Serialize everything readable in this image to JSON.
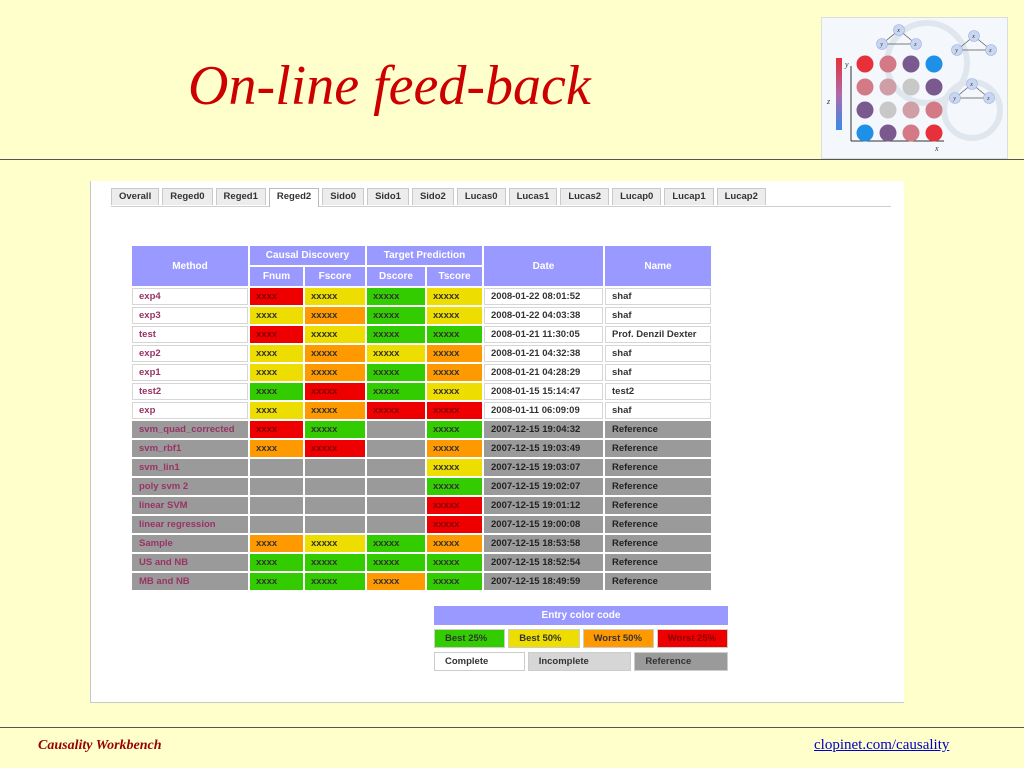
{
  "slide": {
    "title": "On-line feed-back",
    "footer_left": "Causality Workbench",
    "footer_right": "clopinet.com/causality"
  },
  "tabs": [
    "Overall",
    "Reged0",
    "Reged1",
    "Reged2",
    "Sido0",
    "Sido1",
    "Sido2",
    "Lucas0",
    "Lucas1",
    "Lucas2",
    "Lucap0",
    "Lucap1",
    "Lucap2"
  ],
  "active_tab": "Reged2",
  "table": {
    "headers": {
      "method": "Method",
      "causal_discovery": "Causal Discovery",
      "target_prediction": "Target Prediction",
      "date": "Date",
      "name": "Name",
      "fnum": "Fnum",
      "fscore": "Fscore",
      "dscore": "Dscore",
      "tscore": "Tscore"
    },
    "rows": [
      {
        "method": "exp4",
        "ref": false,
        "fnum": {
          "text": "xxxx",
          "color": "red"
        },
        "fscore": {
          "text": "xxxxx",
          "color": "yellow"
        },
        "dscore": {
          "text": "xxxxx",
          "color": "green"
        },
        "tscore": {
          "text": "xxxxx",
          "color": "yellow"
        },
        "date": "2008-01-22 08:01:52",
        "name": "shaf"
      },
      {
        "method": "exp3",
        "ref": false,
        "fnum": {
          "text": "xxxx",
          "color": "yellow"
        },
        "fscore": {
          "text": "xxxxx",
          "color": "orange"
        },
        "dscore": {
          "text": "xxxxx",
          "color": "green"
        },
        "tscore": {
          "text": "xxxxx",
          "color": "yellow"
        },
        "date": "2008-01-22 04:03:38",
        "name": "shaf"
      },
      {
        "method": "test",
        "ref": false,
        "fnum": {
          "text": "xxxx",
          "color": "red"
        },
        "fscore": {
          "text": "xxxxx",
          "color": "yellow"
        },
        "dscore": {
          "text": "xxxxx",
          "color": "green"
        },
        "tscore": {
          "text": "xxxxx",
          "color": "green"
        },
        "date": "2008-01-21 11:30:05",
        "name": "Prof. Denzil Dexter"
      },
      {
        "method": "exp2",
        "ref": false,
        "fnum": {
          "text": "xxxx",
          "color": "yellow"
        },
        "fscore": {
          "text": "xxxxx",
          "color": "orange"
        },
        "dscore": {
          "text": "xxxxx",
          "color": "yellow"
        },
        "tscore": {
          "text": "xxxxx",
          "color": "orange"
        },
        "date": "2008-01-21 04:32:38",
        "name": "shaf"
      },
      {
        "method": "exp1",
        "ref": false,
        "fnum": {
          "text": "xxxx",
          "color": "yellow"
        },
        "fscore": {
          "text": "xxxxx",
          "color": "orange"
        },
        "dscore": {
          "text": "xxxxx",
          "color": "green"
        },
        "tscore": {
          "text": "xxxxx",
          "color": "orange"
        },
        "date": "2008-01-21 04:28:29",
        "name": "shaf"
      },
      {
        "method": "test2",
        "ref": false,
        "fnum": {
          "text": "xxxx",
          "color": "green"
        },
        "fscore": {
          "text": "xxxxx",
          "color": "red"
        },
        "dscore": {
          "text": "xxxxx",
          "color": "green"
        },
        "tscore": {
          "text": "xxxxx",
          "color": "yellow"
        },
        "date": "2008-01-15 15:14:47",
        "name": "test2"
      },
      {
        "method": "exp",
        "ref": false,
        "fnum": {
          "text": "xxxx",
          "color": "yellow"
        },
        "fscore": {
          "text": "xxxxx",
          "color": "orange"
        },
        "dscore": {
          "text": "xxxxx",
          "color": "red"
        },
        "tscore": {
          "text": "xxxxx",
          "color": "red"
        },
        "date": "2008-01-11 06:09:09",
        "name": "shaf"
      },
      {
        "method": "svm_quad_corrected",
        "ref": true,
        "fnum": {
          "text": "xxxx",
          "color": "red"
        },
        "fscore": {
          "text": "xxxxx",
          "color": "green"
        },
        "dscore": {
          "text": "",
          "color": "gray"
        },
        "tscore": {
          "text": "xxxxx",
          "color": "green"
        },
        "date": "2007-12-15 19:04:32",
        "name": "Reference"
      },
      {
        "method": "svm_rbf1",
        "ref": true,
        "fnum": {
          "text": "xxxx",
          "color": "orange"
        },
        "fscore": {
          "text": "xxxxx",
          "color": "red"
        },
        "dscore": {
          "text": "",
          "color": "gray"
        },
        "tscore": {
          "text": "xxxxx",
          "color": "orange"
        },
        "date": "2007-12-15 19:03:49",
        "name": "Reference"
      },
      {
        "method": "svm_lin1",
        "ref": true,
        "fnum": {
          "text": "",
          "color": "gray"
        },
        "fscore": {
          "text": "",
          "color": "gray"
        },
        "dscore": {
          "text": "",
          "color": "gray"
        },
        "tscore": {
          "text": "xxxxx",
          "color": "yellow"
        },
        "date": "2007-12-15 19:03:07",
        "name": "Reference"
      },
      {
        "method": "poly svm 2",
        "ref": true,
        "fnum": {
          "text": "",
          "color": "gray"
        },
        "fscore": {
          "text": "",
          "color": "gray"
        },
        "dscore": {
          "text": "",
          "color": "gray"
        },
        "tscore": {
          "text": "xxxxx",
          "color": "green"
        },
        "date": "2007-12-15 19:02:07",
        "name": "Reference"
      },
      {
        "method": "linear SVM",
        "ref": true,
        "fnum": {
          "text": "",
          "color": "gray"
        },
        "fscore": {
          "text": "",
          "color": "gray"
        },
        "dscore": {
          "text": "",
          "color": "gray"
        },
        "tscore": {
          "text": "xxxxx",
          "color": "red"
        },
        "date": "2007-12-15 19:01:12",
        "name": "Reference"
      },
      {
        "method": "linear regression",
        "ref": true,
        "fnum": {
          "text": "",
          "color": "gray"
        },
        "fscore": {
          "text": "",
          "color": "gray"
        },
        "dscore": {
          "text": "",
          "color": "gray"
        },
        "tscore": {
          "text": "xxxxx",
          "color": "red"
        },
        "date": "2007-12-15 19:00:08",
        "name": "Reference"
      },
      {
        "method": "Sample",
        "ref": true,
        "fnum": {
          "text": "xxxx",
          "color": "orange"
        },
        "fscore": {
          "text": "xxxxx",
          "color": "yellow"
        },
        "dscore": {
          "text": "xxxxx",
          "color": "green"
        },
        "tscore": {
          "text": "xxxxx",
          "color": "orange"
        },
        "date": "2007-12-15 18:53:58",
        "name": "Reference"
      },
      {
        "method": "US and NB",
        "ref": true,
        "fnum": {
          "text": "xxxx",
          "color": "green"
        },
        "fscore": {
          "text": "xxxxx",
          "color": "green"
        },
        "dscore": {
          "text": "xxxxx",
          "color": "green"
        },
        "tscore": {
          "text": "xxxxx",
          "color": "green"
        },
        "date": "2007-12-15 18:52:54",
        "name": "Reference"
      },
      {
        "method": "MB and NB",
        "ref": true,
        "fnum": {
          "text": "xxxx",
          "color": "green"
        },
        "fscore": {
          "text": "xxxxx",
          "color": "green"
        },
        "dscore": {
          "text": "xxxxx",
          "color": "orange"
        },
        "tscore": {
          "text": "xxxxx",
          "color": "green"
        },
        "date": "2007-12-15 18:49:59",
        "name": "Reference"
      }
    ]
  },
  "legend": {
    "title": "Entry color code",
    "best25": "Best 25%",
    "best50": "Best 50%",
    "worst50": "Worst 50%",
    "worst25": "Worst 25%",
    "complete": "Complete",
    "incomplete": "Incomplete",
    "reference": "Reference"
  },
  "logo": {
    "icon": "causal-graph-logo",
    "axis_y": "y",
    "axis_x": "x",
    "axis_z": "z",
    "node_labels": [
      "x",
      "y",
      "z"
    ]
  },
  "colors": {
    "title": "#cc0000",
    "background": "#ffffcc",
    "header": "#9999ff",
    "best25": "#33cc00",
    "best50": "#eedd00",
    "worst50": "#ff9900",
    "worst25": "#ee0000",
    "reference": "#9a9a9a"
  }
}
